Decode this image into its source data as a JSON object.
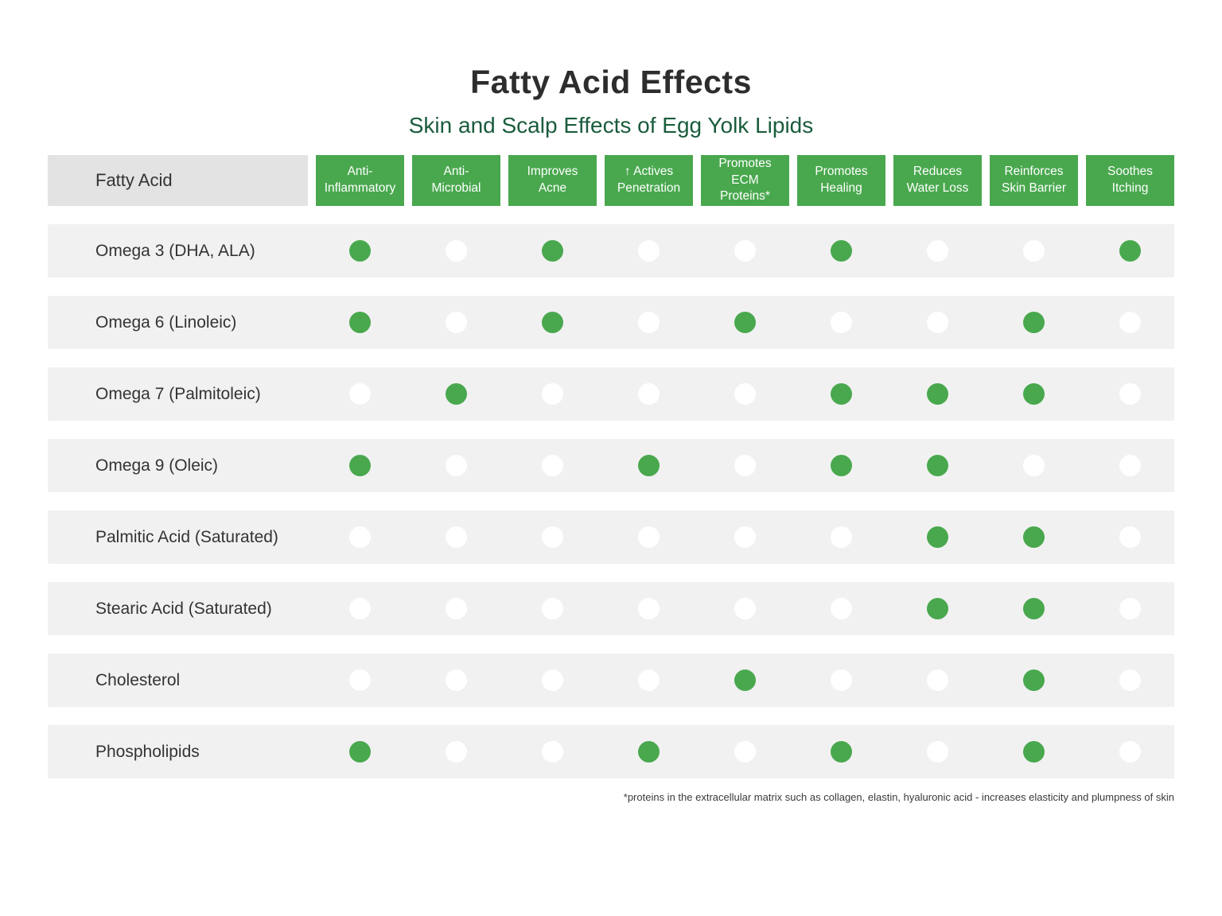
{
  "title": "Fatty Acid Effects",
  "subtitle": "Skin and Scalp Effects of Egg Yolk Lipids",
  "footnote": "*proteins in the extracellular matrix such as collagen, elastin, hyaluronic acid - increases elasticity and plumpness of skin",
  "colors": {
    "header_green": "#49a84e",
    "dot_green": "#49a84e",
    "dot_empty": "#ffffff",
    "row_background": "#f1f1f1",
    "corner_cell_background": "#e3e3e3",
    "subtitle_green": "#1a5c3c",
    "title_color": "#2d2d2d"
  },
  "chart_data": {
    "type": "table",
    "title": "Fatty Acid Effects",
    "subtitle": "Skin and Scalp Effects of Egg Yolk Lipids",
    "row_header": "Fatty Acid",
    "columns": [
      "Anti-\nInflammatory",
      "Anti-\nMicrobial",
      "Improves\nAcne",
      "↑ Actives\nPenetration",
      "Promotes\nECM\nProteins*",
      "Promotes\nHealing",
      "Reduces\nWater Loss",
      "Reinforces\nSkin Barrier",
      "Soothes\nItching"
    ],
    "value_legend": "1 = has effect (green dot), 0 = no effect (white dot)",
    "rows": [
      {
        "label": "Omega 3 (DHA, ALA)",
        "values": [
          1,
          0,
          1,
          0,
          0,
          1,
          0,
          0,
          1
        ]
      },
      {
        "label": "Omega 6 (Linoleic)",
        "values": [
          1,
          0,
          1,
          0,
          1,
          0,
          0,
          1,
          0
        ]
      },
      {
        "label": "Omega 7 (Palmitoleic)",
        "values": [
          0,
          1,
          0,
          0,
          0,
          1,
          1,
          1,
          0
        ]
      },
      {
        "label": "Omega 9 (Oleic)",
        "values": [
          1,
          0,
          0,
          1,
          0,
          1,
          1,
          0,
          0
        ]
      },
      {
        "label": "Palmitic Acid (Saturated)",
        "values": [
          0,
          0,
          0,
          0,
          0,
          0,
          1,
          1,
          0
        ]
      },
      {
        "label": "Stearic Acid (Saturated)",
        "values": [
          0,
          0,
          0,
          0,
          0,
          0,
          1,
          1,
          0
        ]
      },
      {
        "label": "Cholesterol",
        "values": [
          0,
          0,
          0,
          0,
          1,
          0,
          0,
          1,
          0
        ]
      },
      {
        "label": "Phospholipids",
        "values": [
          1,
          0,
          0,
          1,
          0,
          1,
          0,
          1,
          0
        ]
      }
    ]
  }
}
